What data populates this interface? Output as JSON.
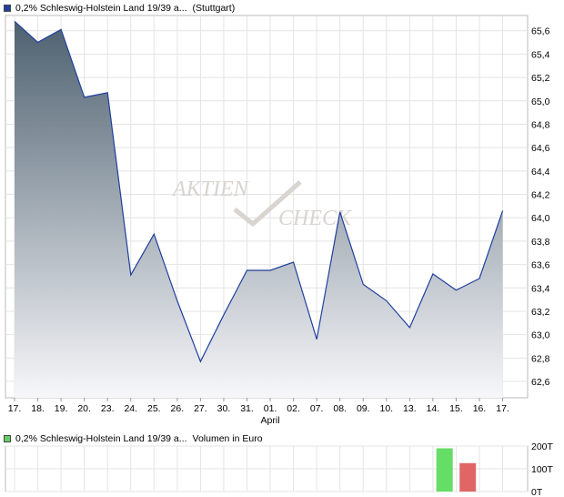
{
  "legend": {
    "price_swatch_color": "#1f3f9e",
    "price_name": "0,2% Schleswig-Holstein Land 19/39 a...",
    "price_exchange": "(Stuttgart)",
    "volume_swatch_color": "#66cc66",
    "volume_name": "0,2% Schleswig-Holstein Land 19/39 a...",
    "volume_unit": "Volumen in Euro"
  },
  "watermark": {
    "line1": "AKTIEN",
    "line2": "CHECK"
  },
  "chart_data": [
    {
      "type": "area",
      "title": "",
      "x": [
        "17.",
        "18.",
        "19.",
        "20.",
        "23.",
        "24.",
        "25.",
        "26.",
        "27.",
        "30.",
        "31.",
        "01.",
        "02.",
        "07.",
        "08.",
        "09.",
        "10.",
        "13.",
        "14.",
        "15.",
        "16.",
        "17."
      ],
      "month_label": {
        "text": "April",
        "under": "01."
      },
      "series": [
        {
          "values": [
            65.68,
            65.5,
            65.61,
            65.03,
            65.07,
            63.51,
            63.86,
            63.29,
            62.77,
            63.17,
            63.55,
            63.55,
            63.62,
            62.96,
            64.05,
            63.43,
            63.29,
            63.06,
            63.52,
            63.38,
            63.48,
            64.06
          ],
          "line_color": "#1f3f9e",
          "fill_top": "#4e6170",
          "fill_bottom": "#f7f7fa"
        }
      ],
      "y_axis": {
        "ticks": [
          62.6,
          62.8,
          63.0,
          63.2,
          63.4,
          63.6,
          63.8,
          64.0,
          64.2,
          64.4,
          64.6,
          64.8,
          65.0,
          65.2,
          65.4,
          65.6
        ],
        "tick_labels": [
          "62,6",
          "62,8",
          "63,0",
          "63,2",
          "63,4",
          "63,6",
          "63,8",
          "64,0",
          "64,2",
          "64,4",
          "64,6",
          "64,8",
          "65,0",
          "65,2",
          "65,4",
          "65,6"
        ],
        "range": [
          62.46,
          65.73
        ],
        "position": "right"
      },
      "grid": true
    },
    {
      "type": "bar",
      "title": "",
      "ylabel": "Volumen in Euro",
      "values": [
        0,
        0,
        0,
        0,
        0,
        0,
        0,
        0,
        0,
        0,
        0,
        0,
        0,
        0,
        0,
        0,
        0,
        0,
        190,
        125,
        0,
        0
      ],
      "bar_colors": {
        "up": "#66dd66",
        "down": "#e06666"
      },
      "bar_direction": [
        "",
        "",
        "",
        "",
        "",
        "",
        "",
        "",
        "",
        "",
        "",
        "",
        "",
        "",
        "",
        "",
        "",
        "",
        "up",
        "down",
        "",
        ""
      ],
      "y_axis": {
        "ticks": [
          0,
          100,
          200
        ],
        "tick_labels": [
          "0T",
          "100T",
          "200T"
        ],
        "range": [
          0,
          200
        ],
        "position": "right"
      },
      "grid": true
    }
  ]
}
